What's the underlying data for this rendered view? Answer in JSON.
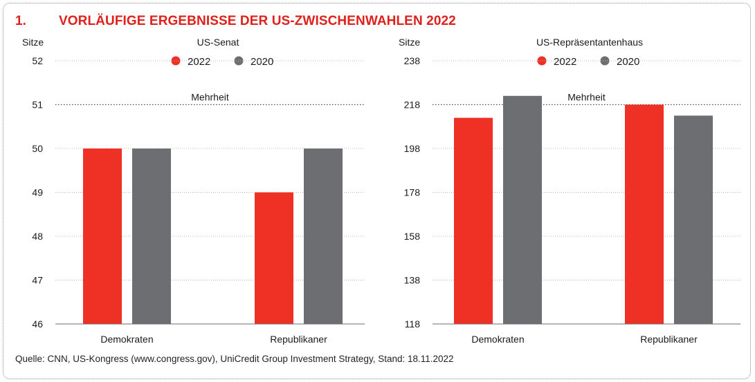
{
  "heading": {
    "number": "1.",
    "title": "VORLÄUFIGE ERGEBNISSE DER US-ZWISCHENWAHLEN 2022"
  },
  "source": "Quelle: CNN, US-Kongress (www.congress.gov), UniCredit Group Investment Strategy, Stand: 18.11.2022",
  "colors": {
    "y2022": "#ee3124",
    "y2020": "#6d6e71"
  },
  "chart_data": [
    {
      "type": "bar",
      "title": "US-Senat",
      "ylabel": "Sitze",
      "categories": [
        "Demokraten",
        "Republikaner"
      ],
      "series": [
        {
          "name": "2022",
          "values": [
            50,
            49
          ]
        },
        {
          "name": "2020",
          "values": [
            50,
            50
          ]
        }
      ],
      "ylim": [
        46,
        52
      ],
      "yticks": [
        "46",
        "47",
        "48",
        "49",
        "50",
        "51",
        "52"
      ],
      "reference_line": {
        "label": "Mehrheit",
        "value": 51
      },
      "grid": true,
      "legend": "top-center"
    },
    {
      "type": "bar",
      "title": "US-Repräsentantenhaus",
      "ylabel": "Sitze",
      "categories": [
        "Demokraten",
        "Republikaner"
      ],
      "series": [
        {
          "name": "2022",
          "values": [
            212,
            218
          ]
        },
        {
          "name": "2020",
          "values": [
            222,
            213
          ]
        }
      ],
      "ylim": [
        118,
        238
      ],
      "yticks": [
        "118",
        "138",
        "158",
        "178",
        "198",
        "218",
        "238"
      ],
      "reference_line": {
        "label": "Mehrheit",
        "value": 218
      },
      "grid": true,
      "legend": "top-center"
    }
  ]
}
